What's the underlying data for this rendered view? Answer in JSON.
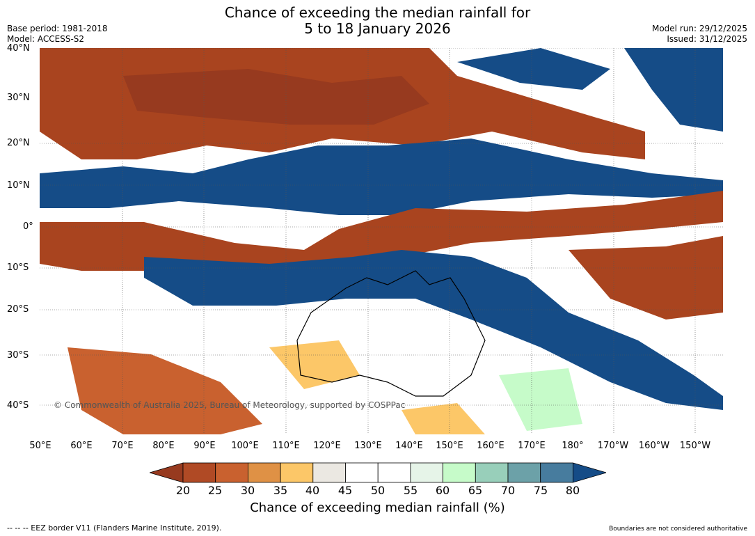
{
  "title_line1": "Chance of exceeding the median rainfall for",
  "title_line2": "5 to 18 January 2026",
  "base_period": "Base period: 1981-2018",
  "model": "Model: ACCESS-S2",
  "model_run": "Model run: 29/12/2025",
  "issued": "Issued: 31/12/2025",
  "lat_labels": [
    "40°N",
    "30°N",
    "20°N",
    "10°N",
    "0°",
    "10°S",
    "20°S",
    "30°S",
    "40°S"
  ],
  "lon_labels": [
    "50°E",
    "60°E",
    "70°E",
    "80°E",
    "90°E",
    "100°E",
    "110°E",
    "120°E",
    "130°E",
    "140°E",
    "150°E",
    "160°E",
    "170°E",
    "180°",
    "170°W",
    "160°W",
    "150°W"
  ],
  "copyright": "© Commonwealth of Australia 2025, Bureau of Meteorology, supported by COSPPac",
  "colorbar": {
    "labels": [
      "20",
      "25",
      "30",
      "35",
      "40",
      "45",
      "50",
      "55",
      "60",
      "65",
      "70",
      "75",
      "80"
    ],
    "colors": [
      "#973a1f",
      "#b04a25",
      "#c9612f",
      "#df9145",
      "#fcc768",
      "#ebe8e2",
      "#ffffff",
      "#ffffff",
      "#e6f4e8",
      "#c6fbc9",
      "#98cfba",
      "#6ca1a8",
      "#477c9e",
      "#154c87"
    ],
    "title": "Chance of exceeding median rainfall (%)"
  },
  "footer_left": "--  --  -- EEZ border V11 (Flanders Marine Institute, 2019).",
  "footer_right": "Boundaries are not considered authoritative"
}
